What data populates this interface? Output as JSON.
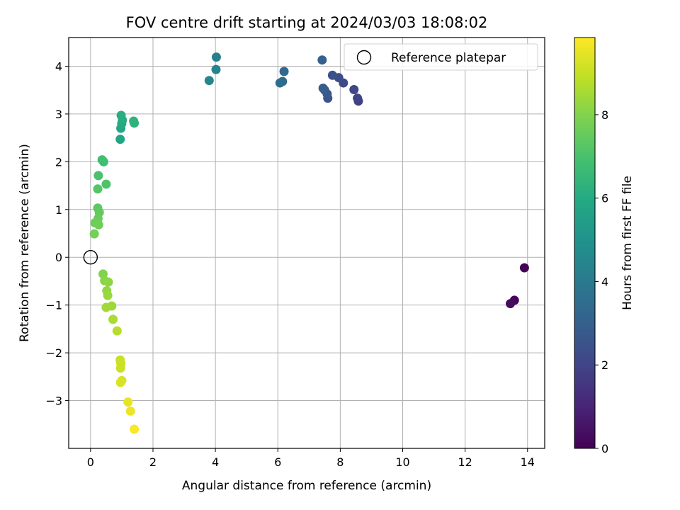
{
  "chart_data": {
    "type": "scatter",
    "title": "FOV centre drift starting at 2024/03/03 18:08:02",
    "xlabel": "Angular distance from reference (arcmin)",
    "ylabel": "Rotation from reference (arcmin)",
    "xlim": [
      -0.7,
      14.55
    ],
    "ylim": [
      -4.0,
      4.6
    ],
    "xticks": [
      0,
      2,
      4,
      6,
      8,
      10,
      12,
      14
    ],
    "yticks": [
      -3,
      -2,
      -1,
      0,
      1,
      2,
      3,
      4
    ],
    "grid": true,
    "legend": {
      "label": "Reference platepar",
      "placement": "top-right"
    },
    "reference": {
      "x": 0,
      "y": 0
    },
    "colorbar": {
      "label": "Hours from first FF file",
      "colormap": "viridis",
      "range": [
        0,
        9.85
      ],
      "ticks": [
        0,
        2,
        4,
        6,
        8
      ]
    },
    "points": [
      {
        "x": 13.9,
        "y": -0.22,
        "c": 0.0
      },
      {
        "x": 13.58,
        "y": -0.9,
        "c": 0.15
      },
      {
        "x": 13.45,
        "y": -0.97,
        "c": 0.3
      },
      {
        "x": 8.58,
        "y": 3.27,
        "c": 1.85
      },
      {
        "x": 8.55,
        "y": 3.33,
        "c": 1.95
      },
      {
        "x": 8.44,
        "y": 3.51,
        "c": 2.05
      },
      {
        "x": 8.1,
        "y": 3.65,
        "c": 2.2
      },
      {
        "x": 7.95,
        "y": 3.76,
        "c": 2.35
      },
      {
        "x": 7.75,
        "y": 3.81,
        "c": 2.45
      },
      {
        "x": 7.6,
        "y": 3.33,
        "c": 2.6
      },
      {
        "x": 7.58,
        "y": 3.42,
        "c": 2.7
      },
      {
        "x": 7.5,
        "y": 3.5,
        "c": 2.8
      },
      {
        "x": 7.45,
        "y": 3.54,
        "c": 2.9
      },
      {
        "x": 7.42,
        "y": 4.13,
        "c": 3.05
      },
      {
        "x": 6.2,
        "y": 3.89,
        "c": 3.3
      },
      {
        "x": 6.15,
        "y": 3.68,
        "c": 3.4
      },
      {
        "x": 6.07,
        "y": 3.65,
        "c": 3.5
      },
      {
        "x": 4.03,
        "y": 4.19,
        "c": 4.3
      },
      {
        "x": 4.02,
        "y": 3.93,
        "c": 4.4
      },
      {
        "x": 3.8,
        "y": 3.7,
        "c": 4.55
      },
      {
        "x": 0.95,
        "y": 2.47,
        "c": 5.75
      },
      {
        "x": 0.97,
        "y": 2.7,
        "c": 5.85
      },
      {
        "x": 1.0,
        "y": 2.8,
        "c": 5.95
      },
      {
        "x": 1.02,
        "y": 2.87,
        "c": 6.05
      },
      {
        "x": 0.98,
        "y": 2.97,
        "c": 6.15
      },
      {
        "x": 1.4,
        "y": 2.81,
        "c": 6.25
      },
      {
        "x": 1.38,
        "y": 2.85,
        "c": 6.35
      },
      {
        "x": 0.42,
        "y": 2.0,
        "c": 6.75
      },
      {
        "x": 0.37,
        "y": 2.04,
        "c": 6.85
      },
      {
        "x": 0.25,
        "y": 1.71,
        "c": 7.0
      },
      {
        "x": 0.5,
        "y": 1.53,
        "c": 7.1
      },
      {
        "x": 0.23,
        "y": 1.43,
        "c": 7.2
      },
      {
        "x": 0.23,
        "y": 1.03,
        "c": 7.35
      },
      {
        "x": 0.28,
        "y": 0.94,
        "c": 7.45
      },
      {
        "x": 0.24,
        "y": 0.81,
        "c": 7.55
      },
      {
        "x": 0.14,
        "y": 0.72,
        "c": 7.65
      },
      {
        "x": 0.26,
        "y": 0.68,
        "c": 7.7
      },
      {
        "x": 0.12,
        "y": 0.49,
        "c": 7.75
      },
      {
        "x": 0.4,
        "y": -0.35,
        "c": 8.0
      },
      {
        "x": 0.45,
        "y": -0.49,
        "c": 8.1
      },
      {
        "x": 0.57,
        "y": -0.52,
        "c": 8.15
      },
      {
        "x": 0.52,
        "y": -0.7,
        "c": 8.25
      },
      {
        "x": 0.55,
        "y": -0.8,
        "c": 8.3
      },
      {
        "x": 0.68,
        "y": -1.02,
        "c": 8.4
      },
      {
        "x": 0.5,
        "y": -1.05,
        "c": 8.45
      },
      {
        "x": 0.72,
        "y": -1.3,
        "c": 8.55
      },
      {
        "x": 0.85,
        "y": -1.54,
        "c": 8.75
      },
      {
        "x": 0.95,
        "y": -2.15,
        "c": 9.0
      },
      {
        "x": 0.97,
        "y": -2.22,
        "c": 9.05
      },
      {
        "x": 0.96,
        "y": -2.32,
        "c": 9.1
      },
      {
        "x": 1.0,
        "y": -2.58,
        "c": 9.25
      },
      {
        "x": 0.96,
        "y": -2.62,
        "c": 9.3
      },
      {
        "x": 1.2,
        "y": -3.03,
        "c": 9.5
      },
      {
        "x": 1.28,
        "y": -3.22,
        "c": 9.6
      },
      {
        "x": 1.4,
        "y": -3.6,
        "c": 9.8
      }
    ]
  }
}
